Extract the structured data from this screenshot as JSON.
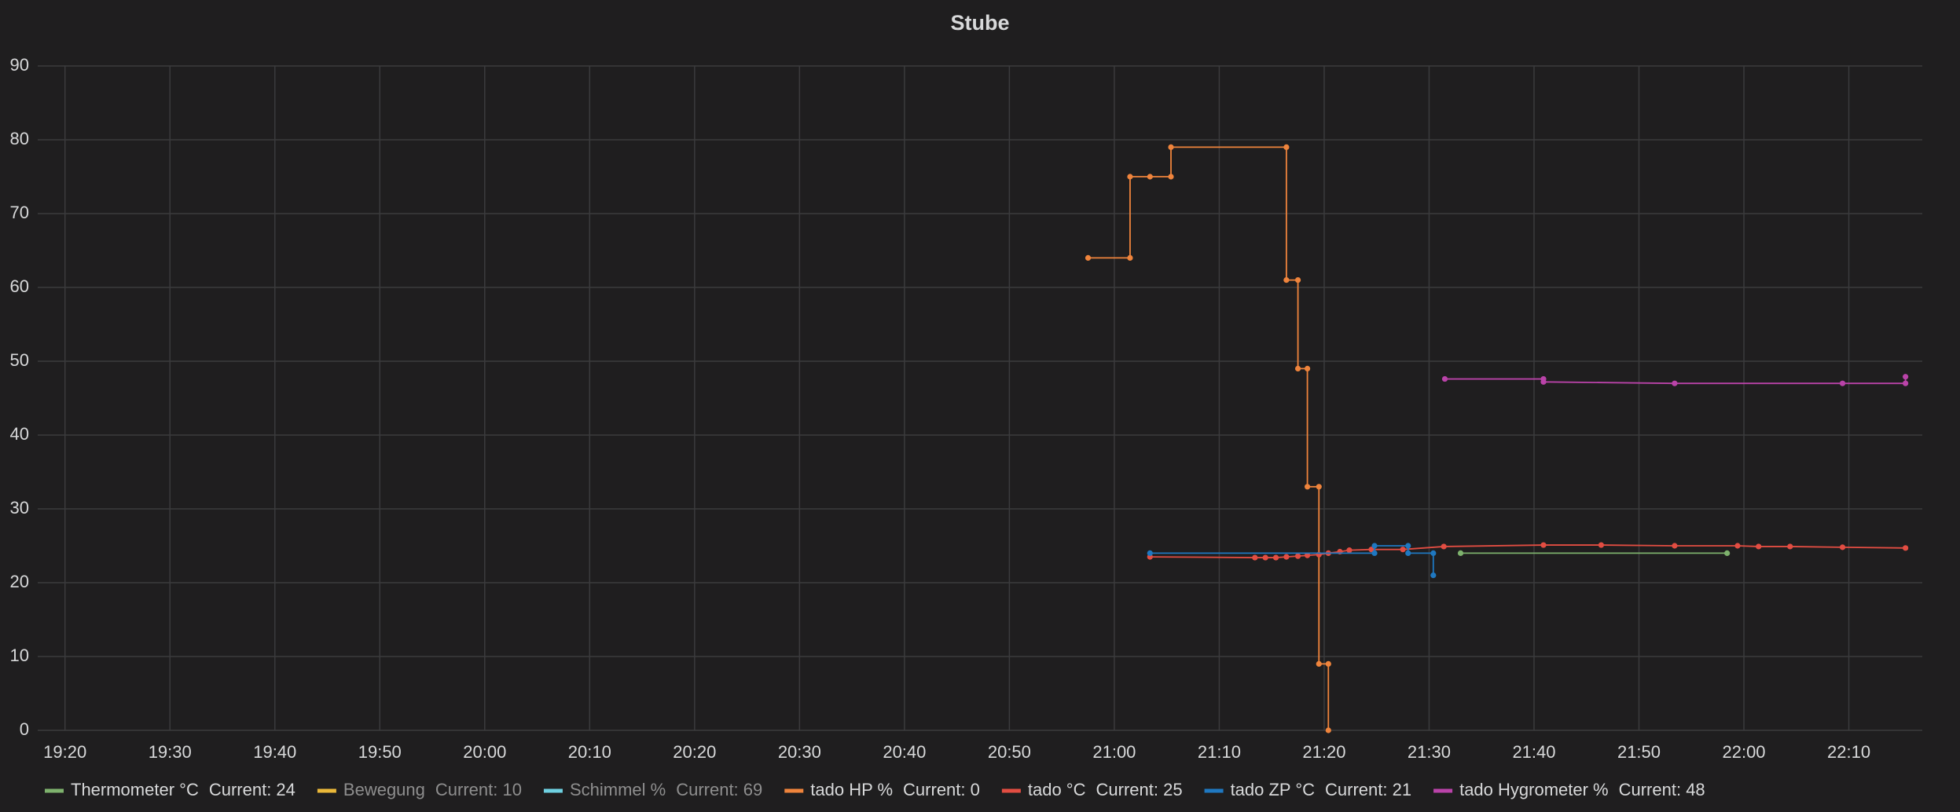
{
  "chart_data": {
    "type": "line",
    "title": "Stube",
    "xlim": [
      1157.4,
      1337.0
    ],
    "xticks": [
      {
        "value": 1160,
        "label": "19:20"
      },
      {
        "value": 1170,
        "label": "19:30"
      },
      {
        "value": 1180,
        "label": "19:40"
      },
      {
        "value": 1190,
        "label": "19:50"
      },
      {
        "value": 1200,
        "label": "20:00"
      },
      {
        "value": 1210,
        "label": "20:10"
      },
      {
        "value": 1220,
        "label": "20:20"
      },
      {
        "value": 1230,
        "label": "20:30"
      },
      {
        "value": 1240,
        "label": "20:40"
      },
      {
        "value": 1250,
        "label": "20:50"
      },
      {
        "value": 1260,
        "label": "21:00"
      },
      {
        "value": 1270,
        "label": "21:10"
      },
      {
        "value": 1280,
        "label": "21:20"
      },
      {
        "value": 1290,
        "label": "21:30"
      },
      {
        "value": 1300,
        "label": "21:40"
      },
      {
        "value": 1310,
        "label": "21:50"
      },
      {
        "value": 1320,
        "label": "22:00"
      },
      {
        "value": 1330,
        "label": "22:10"
      }
    ],
    "ylim": [
      0,
      90
    ],
    "yticks": [
      0,
      10,
      20,
      30,
      40,
      50,
      60,
      70,
      80,
      90
    ],
    "grid": true,
    "legend": "bottom",
    "series": [
      {
        "name": "Thermometer °C",
        "color": "#7eb26d",
        "legend_text": "Current: 24",
        "hidden": false,
        "x": [
          1293.0,
          1318.4
        ],
        "values": [
          24,
          24
        ]
      },
      {
        "name": "Bewegung",
        "color": "#eab839",
        "legend_text": "Current: 10",
        "hidden": true,
        "x": [],
        "values": []
      },
      {
        "name": "Schimmel %",
        "color": "#6ed0e0",
        "legend_text": "Current: 69",
        "hidden": true,
        "x": [],
        "values": []
      },
      {
        "name": "tado HP %",
        "color": "#ef843c",
        "legend_text": "Current: 0",
        "hidden": false,
        "x": [
          1257.5,
          1261.5,
          1261.5,
          1263.4,
          1265.4,
          1265.4,
          1276.4,
          1276.4,
          1277.5,
          1277.5,
          1278.4,
          1278.4,
          1279.5,
          1279.5,
          1280.4,
          1280.4
        ],
        "values": [
          64,
          64,
          75,
          75,
          75,
          79,
          79,
          61,
          61,
          49,
          49,
          33,
          33,
          9,
          9,
          0
        ]
      },
      {
        "name": "tado °C",
        "color": "#e24d42",
        "legend_text": "Current: 25",
        "hidden": false,
        "x": [
          1263.4,
          1273.4,
          1274.4,
          1275.4,
          1276.4,
          1277.5,
          1278.4,
          1279.5,
          1280.4,
          1281.5,
          1282.4,
          1284.5,
          1287.5,
          1291.4,
          1300.9,
          1306.4,
          1313.4,
          1319.4,
          1321.4,
          1324.4,
          1329.4,
          1335.4
        ],
        "values": [
          23.5,
          23.4,
          23.4,
          23.4,
          23.5,
          23.6,
          23.7,
          23.8,
          24.0,
          24.2,
          24.4,
          24.5,
          24.5,
          24.9,
          25.1,
          25.1,
          25.0,
          25.0,
          24.9,
          24.9,
          24.8,
          24.7
        ]
      },
      {
        "name": "tado ZP °C",
        "color": "#1f78c1",
        "legend_text": "Current: 21",
        "hidden": false,
        "x": [
          1263.4,
          1284.8,
          1284.8,
          1288.0,
          1288.0,
          1290.4,
          1290.4
        ],
        "values": [
          24,
          24,
          25,
          25,
          24,
          24,
          21
        ]
      },
      {
        "name": "tado Hygrometer %",
        "color": "#ba43a9",
        "legend_text": "Current: 48",
        "hidden": false,
        "x": [
          1291.5,
          1300.9,
          1300.9,
          1313.4,
          1329.4,
          1335.4,
          1335.4
        ],
        "values": [
          47.6,
          47.6,
          47.2,
          47.0,
          47.0,
          47.0,
          47.9
        ]
      }
    ]
  }
}
